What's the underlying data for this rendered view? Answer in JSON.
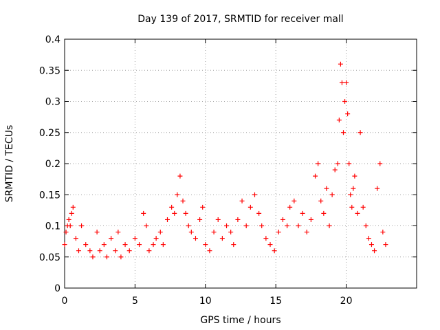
{
  "chart_data": {
    "type": "scatter",
    "title": "Day 139 of 2017, SRMTID for receiver mall",
    "xlabel": "GPS time / hours",
    "ylabel": "SRMTID / TECUs",
    "xlim": [
      0,
      25
    ],
    "ylim": [
      0,
      0.4
    ],
    "xticks": [
      0,
      5,
      10,
      15,
      20
    ],
    "yticks": [
      0,
      0.05,
      0.1,
      0.15,
      0.2,
      0.25,
      0.3,
      0.35,
      0.4
    ],
    "xtick_labels": [
      "0",
      "5",
      "10",
      "15",
      "20"
    ],
    "ytick_labels": [
      "0",
      "0.05",
      "0.1",
      "0.15",
      "0.2",
      "0.25",
      "0.3",
      "0.35",
      "0.4"
    ],
    "grid": true,
    "marker": "+",
    "series": [
      {
        "name": "SRMTID",
        "color": "#ff0000",
        "x": [
          0.0,
          0.1,
          0.2,
          0.3,
          0.4,
          0.5,
          0.6,
          0.8,
          1.0,
          1.2,
          1.5,
          1.8,
          2.0,
          2.3,
          2.5,
          2.8,
          3.0,
          3.3,
          3.6,
          3.8,
          4.0,
          4.3,
          4.6,
          5.0,
          5.3,
          5.6,
          5.8,
          6.0,
          6.3,
          6.5,
          6.8,
          7.0,
          7.3,
          7.6,
          7.8,
          8.0,
          8.2,
          8.4,
          8.6,
          8.8,
          9.0,
          9.3,
          9.6,
          9.8,
          10.0,
          10.3,
          10.6,
          10.9,
          11.2,
          11.5,
          11.8,
          12.0,
          12.3,
          12.6,
          12.9,
          13.2,
          13.5,
          13.8,
          14.0,
          14.3,
          14.6,
          14.9,
          15.2,
          15.5,
          15.8,
          16.0,
          16.3,
          16.6,
          16.9,
          17.2,
          17.5,
          17.8,
          18.0,
          18.2,
          18.4,
          18.6,
          18.8,
          19.0,
          19.2,
          19.4,
          19.5,
          19.6,
          19.7,
          19.8,
          19.9,
          20.0,
          20.1,
          20.2,
          20.3,
          20.4,
          20.5,
          20.6,
          20.8,
          21.0,
          21.2,
          21.4,
          21.6,
          21.8,
          22.0,
          22.2,
          22.4,
          22.6,
          22.8
        ],
        "y": [
          0.07,
          0.09,
          0.1,
          0.11,
          0.1,
          0.12,
          0.13,
          0.08,
          0.06,
          0.1,
          0.07,
          0.06,
          0.05,
          0.09,
          0.06,
          0.07,
          0.05,
          0.08,
          0.06,
          0.09,
          0.05,
          0.07,
          0.06,
          0.08,
          0.07,
          0.12,
          0.1,
          0.06,
          0.07,
          0.08,
          0.09,
          0.07,
          0.11,
          0.13,
          0.12,
          0.15,
          0.18,
          0.14,
          0.12,
          0.1,
          0.09,
          0.08,
          0.11,
          0.13,
          0.07,
          0.06,
          0.09,
          0.11,
          0.08,
          0.1,
          0.09,
          0.07,
          0.11,
          0.14,
          0.1,
          0.13,
          0.15,
          0.12,
          0.1,
          0.08,
          0.07,
          0.06,
          0.09,
          0.11,
          0.1,
          0.13,
          0.14,
          0.1,
          0.12,
          0.09,
          0.11,
          0.18,
          0.2,
          0.14,
          0.12,
          0.16,
          0.1,
          0.15,
          0.19,
          0.2,
          0.27,
          0.36,
          0.33,
          0.25,
          0.3,
          0.33,
          0.28,
          0.2,
          0.15,
          0.13,
          0.16,
          0.18,
          0.12,
          0.25,
          0.13,
          0.1,
          0.08,
          0.07,
          0.06,
          0.16,
          0.2,
          0.09,
          0.07
        ]
      }
    ]
  }
}
